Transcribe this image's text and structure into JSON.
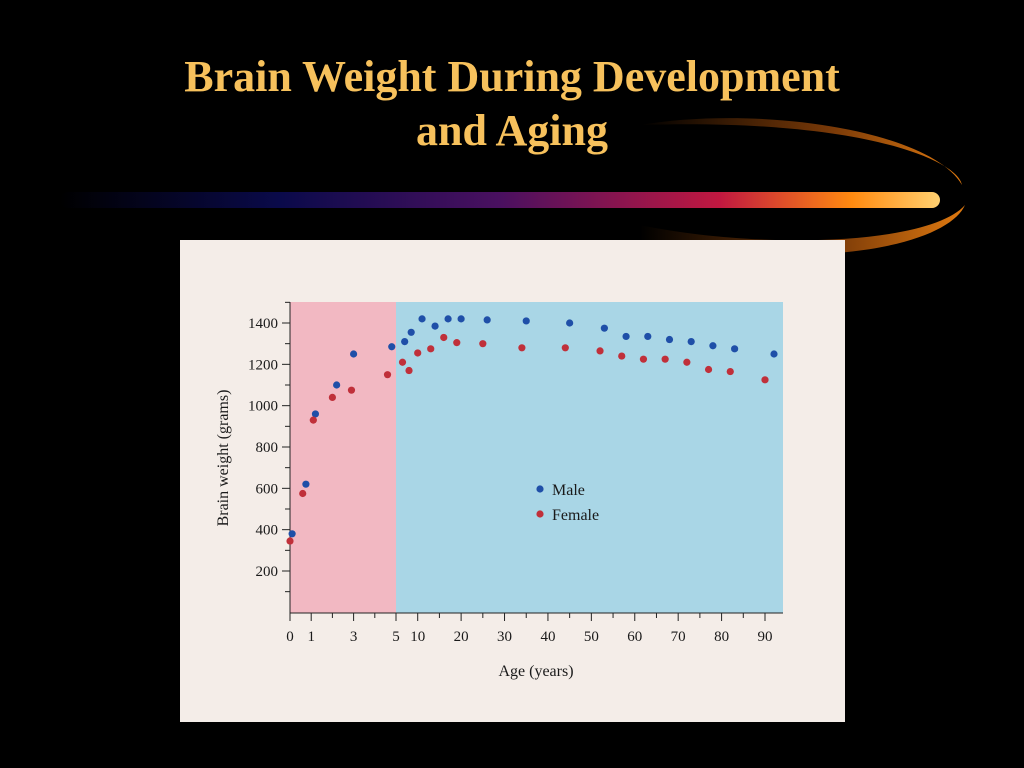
{
  "slide": {
    "title_line1": "Brain Weight During Development",
    "title_line2": "and Aging"
  },
  "colors": {
    "background": "#000000",
    "title": "#f7c15c",
    "development_band": "#f2b8c2",
    "aging_band": "#a9d6e6",
    "male": "#1f4fa8",
    "female": "#c0303a",
    "card": "#f4ede8"
  },
  "chart_data": {
    "type": "scatter",
    "title": "",
    "xlabel": "Age (years)",
    "ylabel": "Brain weight (grams)",
    "x_scale": "piecewise: 0–5 years expanded, 5–90 years compressed",
    "x_ticks": [
      "0",
      "1",
      "3",
      "5",
      "10",
      "20",
      "30",
      "40",
      "50",
      "60",
      "70",
      "80",
      "90"
    ],
    "y_ticks": [
      "200",
      "400",
      "600",
      "800",
      "1000",
      "1200",
      "1400"
    ],
    "ylim": [
      0,
      1500
    ],
    "regions": [
      {
        "from": 0,
        "to": 5,
        "color": "#f2b8c2"
      },
      {
        "from": 5,
        "to": 92,
        "color": "#a9d6e6"
      }
    ],
    "legend": {
      "position": "center"
    },
    "series": [
      {
        "name": "Male",
        "color": "#1f4fa8",
        "points": [
          [
            0.1,
            380
          ],
          [
            0.75,
            620
          ],
          [
            1.2,
            960
          ],
          [
            2.2,
            1100
          ],
          [
            3.0,
            1250
          ],
          [
            4.8,
            1285
          ],
          [
            7,
            1310
          ],
          [
            8.5,
            1355
          ],
          [
            11,
            1420
          ],
          [
            14,
            1385
          ],
          [
            17,
            1420
          ],
          [
            20,
            1420
          ],
          [
            26,
            1415
          ],
          [
            35,
            1410
          ],
          [
            45,
            1400
          ],
          [
            53,
            1375
          ],
          [
            58,
            1335
          ],
          [
            63,
            1335
          ],
          [
            68,
            1320
          ],
          [
            73,
            1310
          ],
          [
            78,
            1290
          ],
          [
            83,
            1275
          ],
          [
            91,
            1250
          ]
        ]
      },
      {
        "name": "Female",
        "color": "#c0303a",
        "points": [
          [
            0.0,
            345
          ],
          [
            0.6,
            575
          ],
          [
            1.1,
            930
          ],
          [
            2.0,
            1040
          ],
          [
            2.9,
            1075
          ],
          [
            4.6,
            1150
          ],
          [
            6.5,
            1210
          ],
          [
            8,
            1170
          ],
          [
            10,
            1255
          ],
          [
            13,
            1275
          ],
          [
            16,
            1330
          ],
          [
            19,
            1305
          ],
          [
            25,
            1300
          ],
          [
            34,
            1280
          ],
          [
            44,
            1280
          ],
          [
            52,
            1265
          ],
          [
            57,
            1240
          ],
          [
            62,
            1225
          ],
          [
            67,
            1225
          ],
          [
            72,
            1210
          ],
          [
            77,
            1175
          ],
          [
            82,
            1165
          ],
          [
            90,
            1125
          ]
        ]
      }
    ]
  }
}
